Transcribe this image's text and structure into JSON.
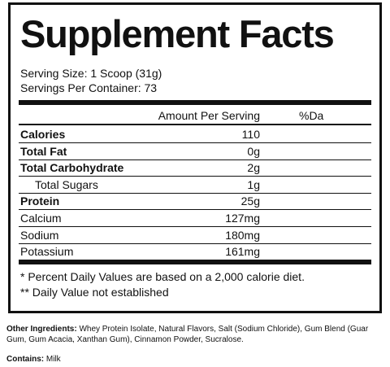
{
  "title": "Supplement Facts",
  "serving_size": "Serving Size: 1 Scoop (31g)",
  "servings_per_container": "Servings Per Container: 73",
  "header": {
    "amount": "Amount Per Serving",
    "percent": "%Da"
  },
  "rows": [
    {
      "name": "Calories",
      "amount": "110"
    },
    {
      "name": "Total Fat",
      "amount": "0g"
    },
    {
      "name": "Total Carbohydrate",
      "amount": "2g"
    },
    {
      "name": "Total Sugars",
      "amount": "1g"
    },
    {
      "name": "Protein",
      "amount": "25g"
    },
    {
      "name": "Calcium",
      "amount": "127mg"
    },
    {
      "name": "Sodium",
      "amount": "180mg"
    },
    {
      "name": "Potassium",
      "amount": "161mg"
    }
  ],
  "footnotes": [
    "* Percent Daily Values are based on a 2,000 calorie diet.",
    "** Daily Value not established"
  ],
  "other_ingredients": {
    "label": "Other Ingredients:",
    "text": "Whey Protein Isolate, Natural Flavors, Salt (Sodium Chloride), Gum Blend (Guar Gum, Gum Acacia, Xanthan Gum), Cinnamon Powder, Sucralose."
  },
  "contains": {
    "label": "Contains:",
    "text": "Milk"
  }
}
